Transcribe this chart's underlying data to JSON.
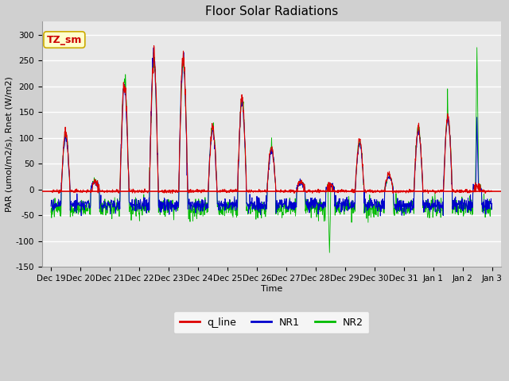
{
  "title": "Floor Solar Radiations",
  "xlabel": "Time",
  "ylabel": "PAR (umol/m2/s), Rnet (W/m2)",
  "ylim": [
    -150,
    325
  ],
  "yticks": [
    -150,
    -100,
    -50,
    0,
    50,
    100,
    150,
    200,
    250,
    300
  ],
  "xtick_labels": [
    "Dec 19",
    "Dec 20",
    "Dec 21",
    "Dec 22",
    "Dec 23",
    "Dec 24",
    "Dec 25",
    "Dec 26",
    "Dec 27",
    "Dec 28",
    "Dec 29",
    "Dec 30",
    "Dec 31",
    "Jan 1",
    "Jan 2",
    "Jan 3"
  ],
  "legend_labels": [
    "q_line",
    "NR1",
    "NR2"
  ],
  "line_colors": [
    "#dd0000",
    "#0000cc",
    "#00bb00"
  ],
  "annotation_text": "TZ_sm",
  "annotation_fg": "#cc0000",
  "annotation_bg": "#ffffcc",
  "annotation_border": "#ccaa00",
  "fig_bg": "#d0d0d0",
  "axes_bg": "#e8e8e8",
  "grid_color": "#ffffff",
  "title_fontsize": 11,
  "axis_label_fontsize": 8,
  "tick_fontsize": 7.5
}
